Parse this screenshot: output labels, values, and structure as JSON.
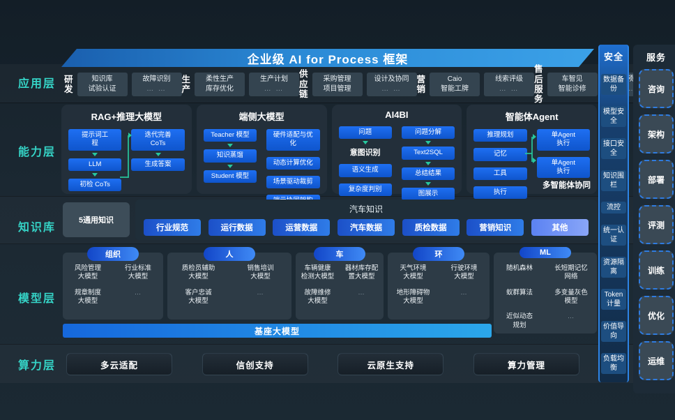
{
  "title": "企业级 AI for Process 框架",
  "layer_labels": [
    "应用层",
    "能力层",
    "知识库",
    "模型层",
    "算力层"
  ],
  "app": {
    "groups": [
      {
        "label": [
          "研发"
        ],
        "boxes": [
          [
            "知识库",
            "试验认证"
          ],
          [
            "故障识别",
            "… …"
          ]
        ]
      },
      {
        "label": [
          "生产"
        ],
        "boxes": [
          [
            "柔性生产",
            "库存优化"
          ],
          [
            "生产计划",
            "… …"
          ]
        ]
      },
      {
        "label": [
          "供应",
          "链"
        ],
        "boxes": [
          [
            "采购管理",
            "项目管理"
          ],
          [
            "设计及协同",
            "… …"
          ]
        ]
      },
      {
        "label": [
          "营销"
        ],
        "boxes": [
          [
            "Caio",
            "智能工牌"
          ],
          [
            "线索评级",
            "… …"
          ]
        ]
      },
      {
        "label": [
          "售后",
          "服务"
        ],
        "boxes": [
          [
            "车智见",
            "智能诊修"
          ],
          [
            "故障预警",
            "… …"
          ]
        ]
      }
    ]
  },
  "cap": {
    "panels": [
      {
        "title": "RAG+推理大模型",
        "left": [
          {
            "t": "box",
            "l": [
              "提示词工",
              "程"
            ]
          },
          {
            "t": "arr"
          },
          {
            "t": "box",
            "l": [
              "LLM"
            ]
          },
          {
            "t": "arr"
          },
          {
            "t": "box",
            "l": [
              "初检 CoTs"
            ]
          }
        ],
        "right": [
          {
            "t": "box",
            "l": [
              "迭代完善",
              "CoTs"
            ]
          },
          {
            "t": "arr"
          },
          {
            "t": "box",
            "l": [
              "生成答案"
            ]
          }
        ],
        "conn": "rag"
      },
      {
        "title": "端侧大模型",
        "left": [
          {
            "t": "box",
            "l": [
              "Teacher 模型"
            ]
          },
          {
            "t": "arr"
          },
          {
            "t": "box",
            "l": [
              "知识蒸馏"
            ]
          },
          {
            "t": "arr"
          },
          {
            "t": "box",
            "l": [
              "Student 模型"
            ]
          }
        ],
        "right": [
          {
            "t": "box",
            "l": [
              "硬件适配与优",
              "化"
            ]
          },
          {
            "t": "sp"
          },
          {
            "t": "box",
            "l": [
              "动态计算优化"
            ]
          },
          {
            "t": "sp"
          },
          {
            "t": "box",
            "l": [
              "场景驱动裁剪"
            ]
          },
          {
            "t": "sp"
          },
          {
            "t": "box",
            "l": [
              "端云协同架构"
            ]
          }
        ]
      },
      {
        "title": "AI4BI",
        "left": [
          {
            "t": "box",
            "l": [
              "问题"
            ]
          },
          {
            "t": "arr"
          },
          {
            "t": "txt",
            "l": [
              "意图识别"
            ]
          },
          {
            "t": "sp"
          },
          {
            "t": "box",
            "l": [
              "语义生成"
            ]
          },
          {
            "t": "sp"
          },
          {
            "t": "box",
            "l": [
              "复杂度判别"
            ]
          }
        ],
        "right": [
          {
            "t": "box",
            "l": [
              "问题分解"
            ]
          },
          {
            "t": "arr"
          },
          {
            "t": "box",
            "l": [
              "Text2SQL"
            ]
          },
          {
            "t": "arr"
          },
          {
            "t": "box",
            "l": [
              "总结结果"
            ]
          },
          {
            "t": "arr"
          },
          {
            "t": "box",
            "l": [
              "图展示"
            ]
          }
        ]
      },
      {
        "title": "智能体Agent",
        "left": [
          {
            "t": "box",
            "l": [
              "推理规划"
            ]
          },
          {
            "t": "sp"
          },
          {
            "t": "box",
            "l": [
              "记忆"
            ]
          },
          {
            "t": "sp"
          },
          {
            "t": "box",
            "l": [
              "工具"
            ]
          },
          {
            "t": "sp"
          },
          {
            "t": "box",
            "l": [
              "执行"
            ]
          }
        ],
        "right": [
          {
            "t": "box",
            "l": [
              "单Agent",
              "执行"
            ]
          },
          {
            "t": "sp"
          },
          {
            "t": "box",
            "l": [
              "单Agent",
              "执行"
            ]
          }
        ],
        "note": "多智能体协同",
        "conn": "agent"
      }
    ]
  },
  "knowledge": {
    "general": "5通用知识",
    "panel_title": "汽车知识",
    "pills": [
      "行业规范",
      "运行数据",
      "运营数据",
      "汽车数据",
      "质检数据",
      "营销知识",
      "其他"
    ]
  },
  "model": {
    "panels": [
      {
        "pill": "组织",
        "cells": [
          [
            "风险管理",
            "大模型"
          ],
          [
            "行业标准",
            "大模型"
          ],
          [
            "规章制度",
            "大模型"
          ],
          [
            "…"
          ]
        ]
      },
      {
        "pill": "人",
        "cells": [
          [
            "质检员辅助",
            "大模型"
          ],
          [
            "销售培训",
            "大模型"
          ],
          [
            "客户忠诚",
            "大模型"
          ],
          [
            "…"
          ]
        ]
      },
      {
        "pill": "车",
        "cells": [
          [
            "车辆健康",
            "检测大模型"
          ],
          [
            "器材库存配",
            "置大模型"
          ],
          [
            "故障维修",
            "大模型"
          ],
          [
            "…"
          ]
        ]
      },
      {
        "pill": "环",
        "cells": [
          [
            "天气环境",
            "大模型"
          ],
          [
            "行驶环境",
            "大模型"
          ],
          [
            "地形障碍物",
            "大模型"
          ],
          [
            "…"
          ]
        ]
      },
      {
        "pill": "ML",
        "tall": true,
        "cells": [
          [
            "随机森林"
          ],
          [
            "长短期记忆",
            "网络"
          ],
          [
            "蚁群算法"
          ],
          [
            "多变量灰色",
            "模型"
          ],
          [
            "近似动态",
            "规划"
          ],
          [
            "…"
          ]
        ]
      }
    ],
    "base_bar": "基座大模型"
  },
  "compute": {
    "boxes": [
      "多云适配",
      "信创支持",
      "云原生支持",
      "算力管理"
    ]
  },
  "security": {
    "title": "安全",
    "items": [
      "数据备份",
      "模型安全",
      "接口安全",
      "知识围栏",
      "流控",
      "统一认证",
      "资源隔离",
      "Token计量",
      "价值导向",
      "负载均衡"
    ]
  },
  "service": {
    "title": "服务",
    "items": [
      "咨询",
      "架构",
      "部署",
      "评测",
      "训练",
      "优化",
      "运维"
    ]
  },
  "colors": {
    "accent_cyan": "#35d3c6",
    "primary_blue": "#1e6ff2",
    "arrow_green": "#27c79e",
    "pill_blue": "#2f7ce8",
    "pill_alt": "#89a6f8"
  }
}
